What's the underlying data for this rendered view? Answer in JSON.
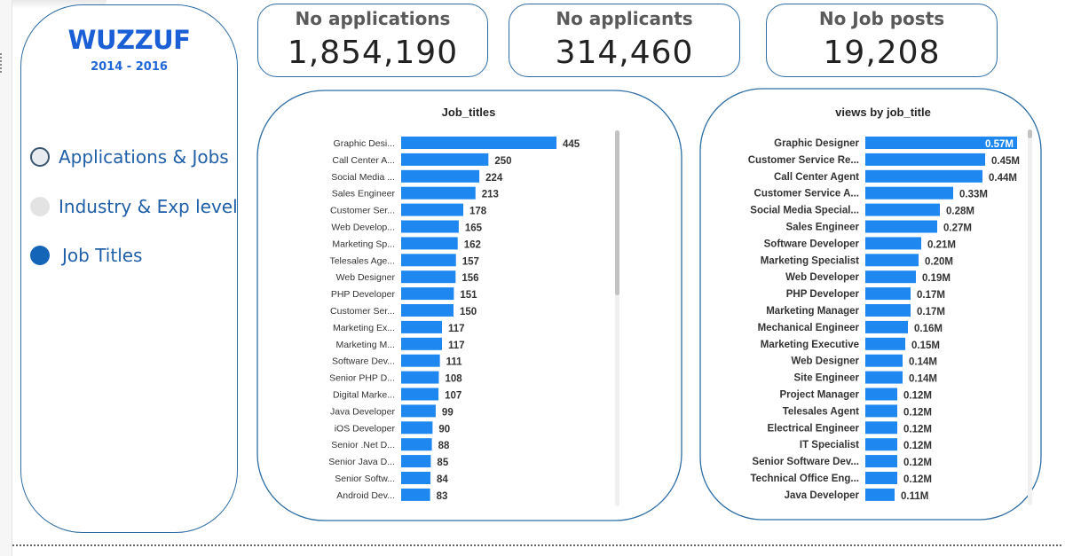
{
  "brand": {
    "logo": "WUZZUF",
    "years": "2014 - 2016"
  },
  "nav": {
    "items": [
      {
        "label": "Applications & Jobs",
        "state": "outline"
      },
      {
        "label": "Industry & Exp level",
        "state": "gray"
      },
      {
        "label": "Job Titles",
        "state": "selected"
      }
    ]
  },
  "kpis": [
    {
      "label": "No applications",
      "value": "1,854,190"
    },
    {
      "label": "No applicants",
      "value": "314,460"
    },
    {
      "label": "No Job posts",
      "value": "19,208"
    }
  ],
  "colors": {
    "accent": "#2e6da4",
    "bar": "#1e88f0",
    "brand": "#1a5fd6"
  },
  "chart_data": [
    {
      "type": "bar",
      "orientation": "horizontal",
      "title": "Job_titles",
      "categories": [
        "Graphic Desi...",
        "Call Center A...",
        "Social Media ...",
        "Sales Engineer",
        "Customer Ser...",
        "Web Develop...",
        "Marketing Sp...",
        "Telesales Age...",
        "Web Designer",
        "PHP Developer",
        "Customer Ser...",
        "Marketing Ex...",
        "Marketing M...",
        "Software Dev...",
        "Senior PHP D...",
        "Digital Marke...",
        "Java Developer",
        "iOS Developer",
        "Senior .Net D...",
        "Senior Java D...",
        "Senior Softw...",
        "Android Dev..."
      ],
      "values": [
        445,
        250,
        224,
        213,
        178,
        165,
        162,
        157,
        156,
        151,
        150,
        117,
        117,
        111,
        108,
        107,
        99,
        90,
        88,
        85,
        84,
        83
      ],
      "data_labels": [
        "445",
        "250",
        "224",
        "213",
        "178",
        "165",
        "162",
        "157",
        "156",
        "151",
        "150",
        "117",
        "117",
        "111",
        "108",
        "107",
        "99",
        "90",
        "88",
        "85",
        "84",
        "83"
      ],
      "xlim": [
        0,
        445
      ]
    },
    {
      "type": "bar",
      "orientation": "horizontal",
      "title": "views by job_title",
      "categories": [
        "Graphic Designer",
        "Customer Service Re...",
        "Call Center Agent",
        "Customer Service A...",
        "Social Media Special...",
        "Sales Engineer",
        "Software Developer",
        "Marketing Specialist",
        "Web Developer",
        "PHP Developer",
        "Marketing Manager",
        "Mechanical Engineer",
        "Marketing Executive",
        "Web Designer",
        "Site Engineer",
        "Project Manager",
        "Telesales Agent",
        "Electrical Engineer",
        "IT Specialist",
        "Senior Software Dev...",
        "Technical Office Eng...",
        "Java Developer"
      ],
      "values": [
        570000,
        450000,
        440000,
        330000,
        280000,
        270000,
        210000,
        200000,
        190000,
        170000,
        170000,
        160000,
        150000,
        140000,
        140000,
        120000,
        120000,
        120000,
        120000,
        120000,
        120000,
        110000
      ],
      "data_labels": [
        "0.57M",
        "0.45M",
        "0.44M",
        "0.33M",
        "0.28M",
        "0.27M",
        "0.21M",
        "0.20M",
        "0.19M",
        "0.17M",
        "0.17M",
        "0.16M",
        "0.15M",
        "0.14M",
        "0.14M",
        "0.12M",
        "0.12M",
        "0.12M",
        "0.12M",
        "0.12M",
        "0.12M",
        "0.11M"
      ],
      "xlim": [
        0,
        570000
      ]
    }
  ]
}
